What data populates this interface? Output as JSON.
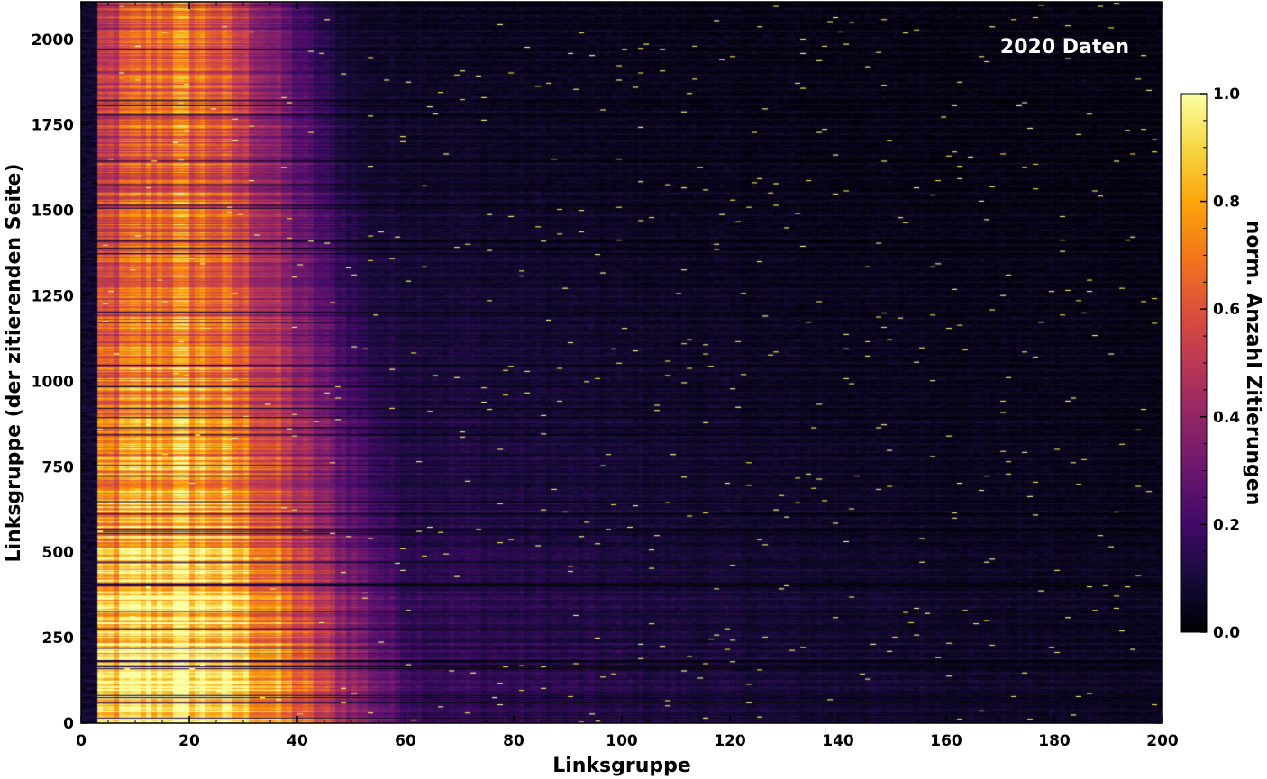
{
  "chart_data": {
    "type": "heatmap",
    "title": "",
    "annotation": "2020 Daten",
    "xlabel": "Linksgruppe",
    "ylabel": "Linksgruppe (der zitierenden Seite)",
    "colorbar_label": "norm. Anzahl Zitierungen",
    "colormap": "inferno",
    "xlim": [
      0,
      200
    ],
    "ylim": [
      0,
      2110
    ],
    "clim": [
      0.0,
      1.0
    ],
    "x_ticks": [
      "0",
      "20",
      "40",
      "60",
      "80",
      "100",
      "120",
      "140",
      "160",
      "180",
      "200"
    ],
    "y_ticks": [
      "0",
      "250",
      "500",
      "750",
      "1000",
      "1250",
      "1500",
      "1750",
      "2000"
    ],
    "colorbar_ticks": [
      "0.0",
      "0.2",
      "0.4",
      "0.6",
      "0.8",
      "1.0"
    ],
    "x_tick_values": [
      0,
      20,
      40,
      60,
      80,
      100,
      120,
      140,
      160,
      180,
      200
    ],
    "y_tick_values": [
      0,
      250,
      500,
      750,
      1000,
      1250,
      1500,
      1750,
      2000
    ],
    "colorbar_tick_values": [
      0.0,
      0.2,
      0.4,
      0.6,
      0.8,
      1.0
    ],
    "value_profile": {
      "description_peak_x": 17,
      "peak_value_low_y": 1.0,
      "peak_value_high_y": 0.65,
      "background_value": 0.05
    }
  }
}
